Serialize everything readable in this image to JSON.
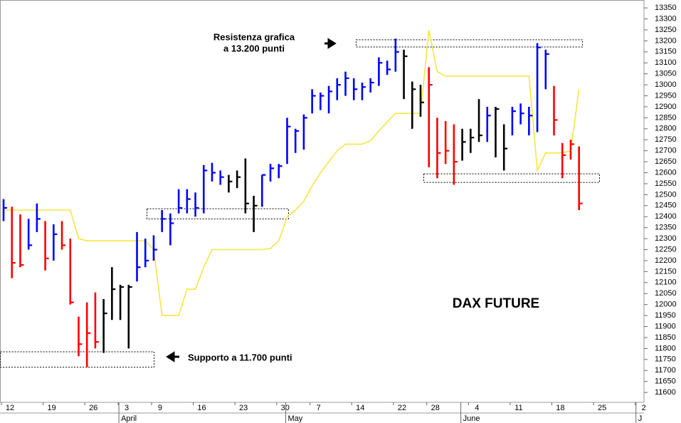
{
  "chart_data": {
    "type": "ohlc",
    "title": "DAX FUTURE",
    "annotations": {
      "resistance": [
        "Resistenza grafica",
        "a 13.200 punti"
      ],
      "support": "Supporto a 11.700 punti"
    },
    "categories": [
      "12",
      null,
      null,
      null,
      null,
      "19",
      null,
      null,
      null,
      null,
      "26",
      null,
      null,
      null,
      "3",
      null,
      null,
      null,
      "9",
      null,
      null,
      null,
      null,
      "16",
      null,
      null,
      null,
      null,
      "23",
      null,
      null,
      null,
      null,
      "30",
      null,
      null,
      null,
      "7",
      null,
      null,
      null,
      null,
      "14",
      null,
      null,
      null,
      null,
      "22",
      null,
      null,
      null,
      "28",
      null,
      null,
      null,
      null,
      "4",
      null,
      null,
      null,
      null,
      "11",
      null,
      null,
      null,
      null,
      "18",
      null,
      null,
      null,
      null,
      "25",
      null,
      null,
      null,
      null,
      "2",
      null
    ],
    "months": [
      null,
      null,
      null,
      null,
      null,
      null,
      null,
      null,
      null,
      null,
      null,
      null,
      null,
      null,
      "April",
      null,
      null,
      null,
      null,
      null,
      null,
      null,
      null,
      null,
      null,
      null,
      null,
      null,
      null,
      null,
      null,
      null,
      null,
      null,
      "May",
      null,
      null,
      null,
      null,
      null,
      null,
      null,
      null,
      null,
      null,
      null,
      null,
      null,
      null,
      null,
      null,
      null,
      null,
      null,
      null,
      "June",
      null,
      null,
      null,
      null,
      null,
      null,
      null,
      null,
      null,
      null,
      null,
      null,
      null,
      null,
      null,
      null,
      null,
      null,
      null,
      null,
      "J",
      null
    ],
    "high": [
      12480,
      12445,
      12410,
      12390,
      12460,
      12380,
      12365,
      12380,
      12300,
      11945,
      12010,
      12055,
      12025,
      12170,
      12090,
      12090,
      12330,
      12300,
      12315,
      12430,
      12415,
      12525,
      12525,
      12510,
      12635,
      12645,
      12610,
      12590,
      12610,
      12665,
      12495,
      12590,
      12640,
      12640,
      12850,
      12800,
      12865,
      12980,
      12965,
      12995,
      13030,
      13060,
      13030,
      13010,
      13030,
      13125,
      13110,
      13210,
      13160,
      13015,
      13000,
      13080,
      12850,
      12835,
      12820,
      12800,
      12800,
      12935,
      12900,
      12900,
      12820,
      12900,
      12915,
      12900,
      13190,
      13160,
      12995,
      12735,
      12750,
      12720,
      null,
      null,
      null,
      null,
      null,
      null,
      null,
      null
    ],
    "low": [
      12380,
      12120,
      12170,
      12250,
      12330,
      12155,
      12200,
      12250,
      12000,
      11765,
      11715,
      11800,
      11780,
      11930,
      11930,
      11800,
      12105,
      12170,
      12200,
      12330,
      12270,
      12415,
      12415,
      12400,
      12415,
      12560,
      12545,
      12510,
      12530,
      12415,
      12330,
      12445,
      12560,
      12575,
      12640,
      12690,
      12705,
      12870,
      12885,
      12870,
      12930,
      12950,
      12930,
      12930,
      12965,
      12995,
      13045,
      13060,
      12935,
      12800,
      12855,
      12625,
      12575,
      12640,
      12545,
      12655,
      12690,
      12740,
      12740,
      12670,
      12610,
      12770,
      12820,
      12770,
      12785,
      12980,
      12770,
      12575,
      12660,
      12430,
      null,
      null,
      null,
      null,
      null,
      null,
      null,
      null
    ],
    "close": [
      12440,
      12190,
      12180,
      12270,
      12390,
      12210,
      12320,
      12270,
      12010,
      11820,
      11870,
      11830,
      11960,
      12070,
      12080,
      12080,
      12170,
      12200,
      12250,
      12390,
      12370,
      12440,
      12480,
      12440,
      12610,
      12600,
      12580,
      12560,
      12580,
      12460,
      12450,
      12590,
      12620,
      12630,
      12810,
      12790,
      12850,
      12950,
      12950,
      12970,
      13000,
      13030,
      12980,
      12990,
      13010,
      13100,
      13070,
      13150,
      13130,
      12980,
      12920,
      13000,
      12690,
      12700,
      12650,
      12740,
      12760,
      12770,
      12860,
      12890,
      12710,
      12880,
      12870,
      12860,
      13170,
      13140,
      12840,
      12680,
      12730,
      12460,
      null,
      null,
      null,
      null,
      null,
      null,
      null,
      null
    ],
    "colors": [
      "#0000ff",
      "#ff0000",
      "#ff0000",
      "#0000ff",
      "#0000ff",
      "#ff0000",
      "#0000ff",
      "#ff0000",
      "#ff0000",
      "#ff0000",
      "#ff0000",
      "#ff0000",
      "#000000",
      "#000000",
      "#000000",
      "#000000",
      "#0000ff",
      "#0000ff",
      "#0000ff",
      "#0000ff",
      "#0000ff",
      "#0000ff",
      "#0000ff",
      "#0000ff",
      "#0000ff",
      "#0000ff",
      "#0000ff",
      "#000000",
      "#000000",
      "#000000",
      "#000000",
      "#0000ff",
      "#0000ff",
      "#0000ff",
      "#0000ff",
      "#0000ff",
      "#0000ff",
      "#0000ff",
      "#0000ff",
      "#0000ff",
      "#0000ff",
      "#0000ff",
      "#0000ff",
      "#0000ff",
      "#0000ff",
      "#0000ff",
      "#0000ff",
      "#0000ff",
      "#000000",
      "#000000",
      "#000000",
      "#ff0000",
      "#ff0000",
      "#ff0000",
      "#ff0000",
      "#000000",
      "#000000",
      "#000000",
      "#0000ff",
      "#000000",
      "#000000",
      "#0000ff",
      "#0000ff",
      "#0000ff",
      "#0000ff",
      "#0000ff",
      "#ff0000",
      "#ff0000",
      "#ff0000",
      "#ff0000",
      null,
      null,
      null,
      null,
      null,
      null,
      null,
      null
    ],
    "line": {
      "color": "#f5e642",
      "values": [
        12430,
        12430,
        12430,
        12430,
        12430,
        12430,
        12430,
        12430,
        12430,
        12300,
        12290,
        12290,
        12290,
        12290,
        12290,
        12290,
        12290,
        12290,
        12250,
        11950,
        11950,
        11950,
        12070,
        12070,
        12170,
        12250,
        12250,
        12250,
        12250,
        12250,
        12250,
        12250,
        12255,
        12290,
        12400,
        12430,
        12470,
        12540,
        12600,
        12650,
        12700,
        12730,
        12730,
        12730,
        12745,
        12790,
        12830,
        12870,
        12870,
        12870,
        12870,
        13250,
        13060,
        13040,
        13040,
        13040,
        13040,
        13040,
        13040,
        13040,
        13040,
        13040,
        13040,
        13040,
        12610,
        12690,
        12690,
        12690,
        12700,
        12980,
        null,
        null,
        null,
        null,
        null,
        null,
        null,
        null
      ]
    },
    "zones": [
      {
        "range": [
          13172,
          13205
        ]
      },
      {
        "range": [
          11715,
          11785
        ]
      },
      {
        "range": [
          12390,
          12436
        ]
      },
      {
        "range": [
          12556,
          12595
        ]
      }
    ],
    "ylim": [
      11555,
      13386
    ],
    "yticks": [
      11600,
      11650,
      11700,
      11750,
      11800,
      11850,
      11900,
      11950,
      12000,
      12050,
      12100,
      12150,
      12200,
      12250,
      12300,
      12350,
      12400,
      12450,
      12500,
      12550,
      12600,
      12650,
      12700,
      12750,
      12800,
      12850,
      12900,
      12950,
      13000,
      13050,
      13100,
      13150,
      13200,
      13250,
      13300,
      13350
    ]
  }
}
